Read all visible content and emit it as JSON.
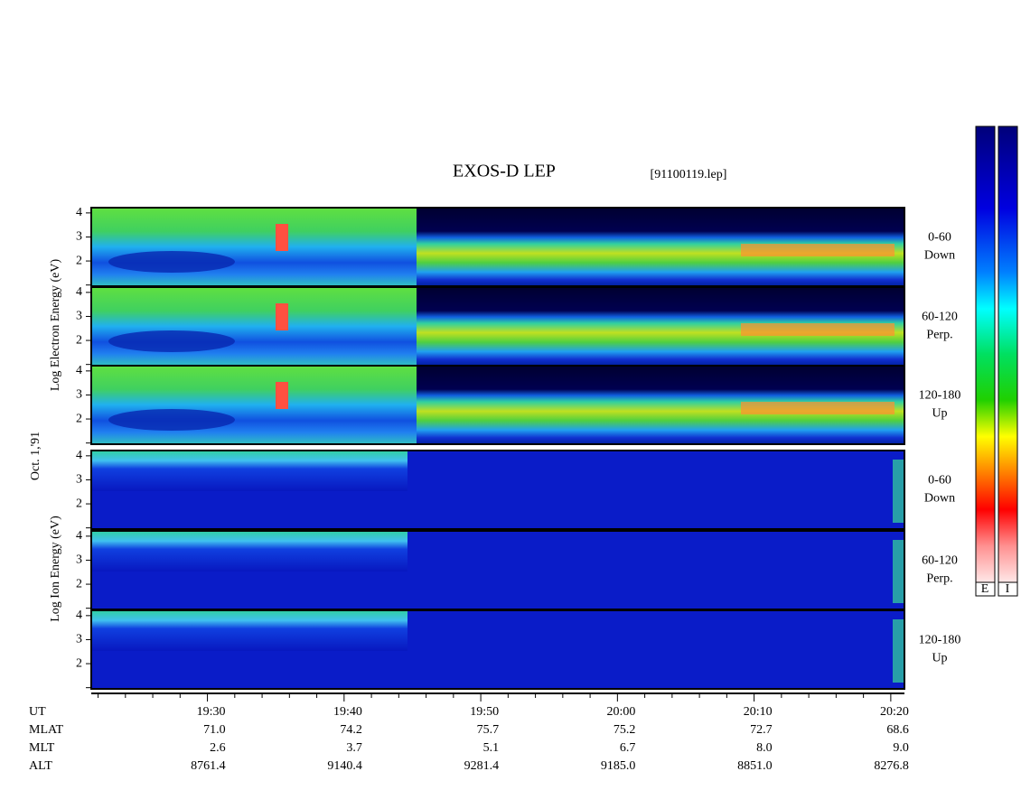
{
  "chart_data": {
    "type": "spectrogram",
    "title": "EXOS-D LEP",
    "subtitle": "[91100119.lep]",
    "electron_ylabel": "Log  Electron  Energy (eV)",
    "date": "Oct. 1,'91",
    "ion_ylabel": "Log  Ion  Energy (eV)",
    "ylim": [
      0.95,
      4.22
    ],
    "yticks": [
      2,
      3,
      4
    ],
    "electron_panels": [
      {
        "angle": "0-60",
        "direction": "Down"
      },
      {
        "angle": "60-120",
        "direction": "Perp."
      },
      {
        "angle": "120-180",
        "direction": "Up"
      }
    ],
    "ion_panels": [
      {
        "angle": "0-60",
        "direction": "Down"
      },
      {
        "angle": "60-120",
        "direction": "Perp."
      },
      {
        "angle": "120-180",
        "direction": "Up"
      }
    ],
    "xlim": [
      1161.5,
      1221
    ],
    "xticks": [
      {
        "value": 1170,
        "label": "19:30"
      },
      {
        "value": 1180,
        "label": "19:40"
      },
      {
        "value": 1190,
        "label": "19:50"
      },
      {
        "value": 1200,
        "label": "20:00"
      },
      {
        "value": 1210,
        "label": "20:10"
      },
      {
        "value": 1220,
        "label": "20:20"
      }
    ],
    "xminorticks": [
      1162,
      1164,
      1166,
      1168,
      1172,
      1174,
      1176,
      1178,
      1182,
      1184,
      1186,
      1188,
      1192,
      1194,
      1196,
      1198,
      1202,
      1204,
      1206,
      1208,
      1212,
      1214,
      1216,
      1218
    ],
    "xlabel": "UT",
    "ephemeris": [
      {
        "name": "MLAT",
        "values": [
          "71.0",
          "74.2",
          "75.7",
          "75.2",
          "72.7",
          "68.6"
        ]
      },
      {
        "name": "MLT",
        "values": [
          "2.6",
          "3.7",
          "5.1",
          "6.7",
          "8.0",
          "9.0"
        ]
      },
      {
        "name": "ALT",
        "values": [
          "8761.4",
          "9140.4",
          "9281.4",
          "9185.0",
          "8851.0",
          "8276.8"
        ]
      }
    ],
    "colorbar_labels": [
      "E",
      "I"
    ]
  }
}
